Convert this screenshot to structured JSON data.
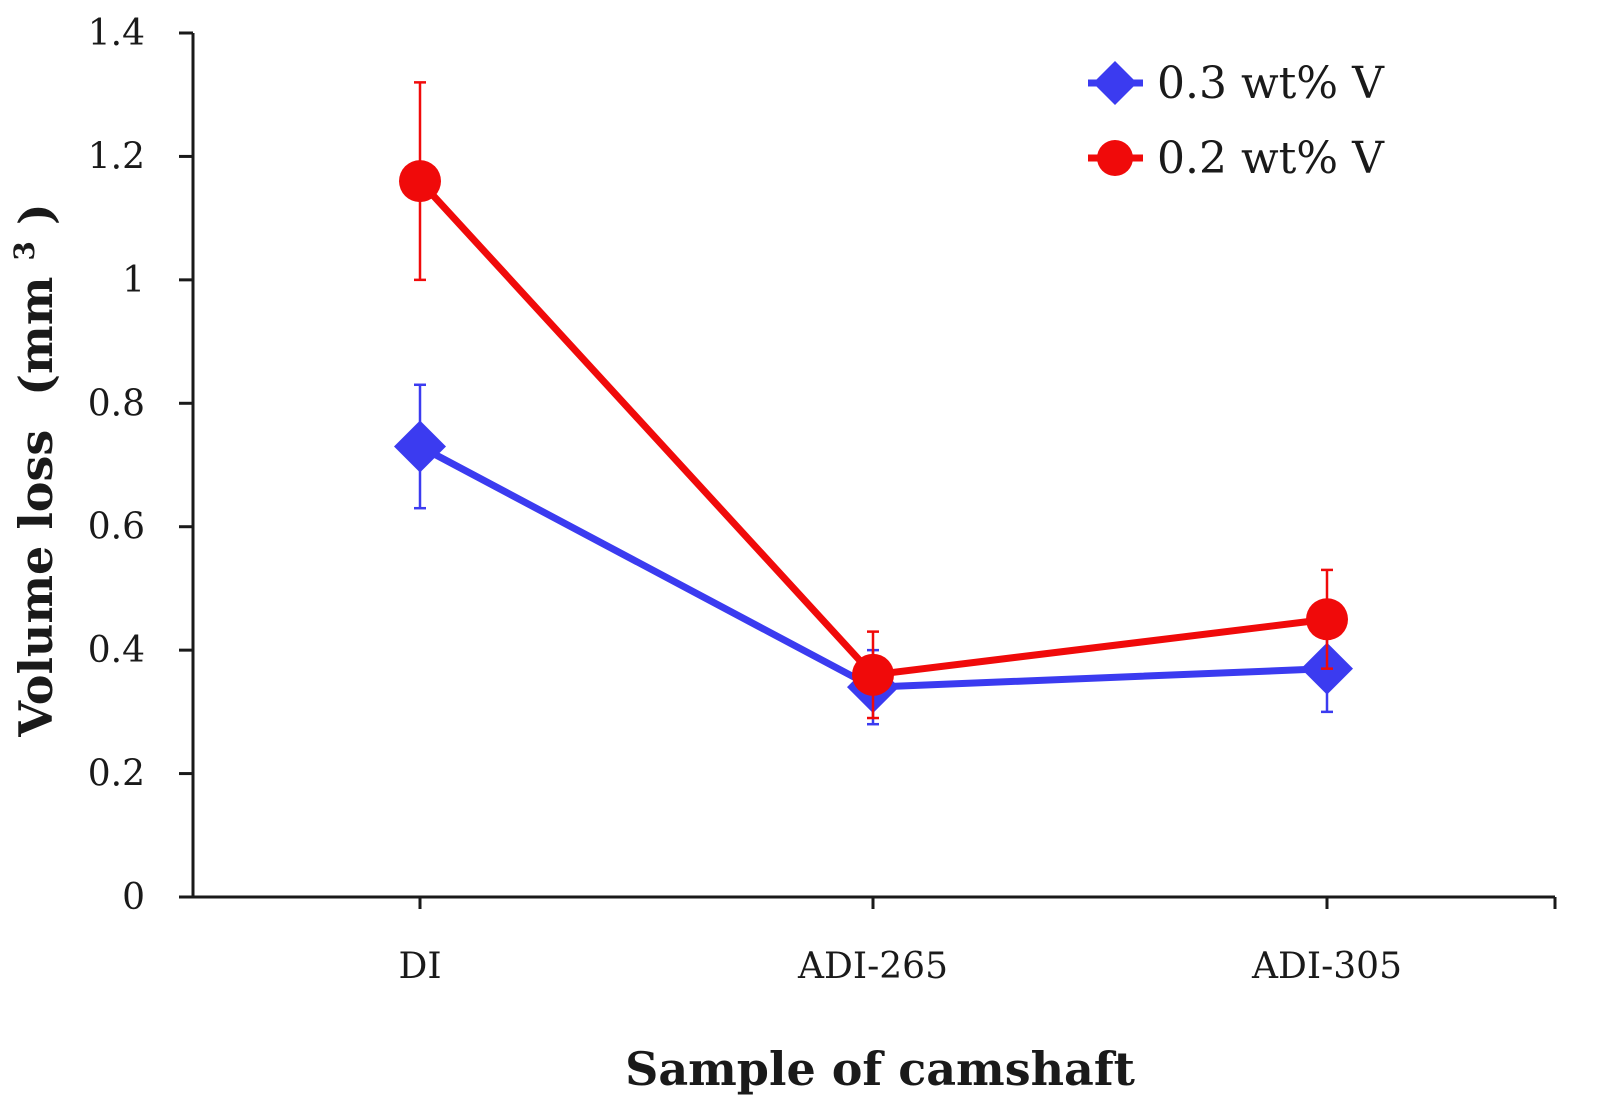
{
  "chart_data": {
    "type": "line",
    "title": "",
    "xlabel": "Sample of camshaft",
    "ylabel_main": "Volume loss",
    "ylabel_unit_prefix": "(mm",
    "ylabel_unit_sup": "3",
    "ylabel_unit_suffix": ")",
    "categories": [
      "DI",
      "ADI-265",
      "ADI-305"
    ],
    "ylim": [
      0,
      1.4
    ],
    "yticks": [
      0,
      0.2,
      0.4,
      0.6,
      0.8,
      1,
      1.2,
      1.4
    ],
    "ytick_labels": [
      "0",
      "0.2",
      "0.4",
      "0.6",
      "0.8",
      "1",
      "1.2",
      "1.4"
    ],
    "grid": false,
    "legend_position": "top-right",
    "series": [
      {
        "name": "0.3 wt% V",
        "marker": "diamond",
        "color": "#3b3bf0",
        "values": [
          0.73,
          0.34,
          0.37
        ],
        "errors": [
          0.1,
          0.06,
          0.07
        ]
      },
      {
        "name": "0.2 wt% V",
        "marker": "circle",
        "color": "#f00a0a",
        "values": [
          1.16,
          0.36,
          0.45
        ],
        "errors": [
          0.16,
          0.07,
          0.08
        ]
      }
    ]
  }
}
